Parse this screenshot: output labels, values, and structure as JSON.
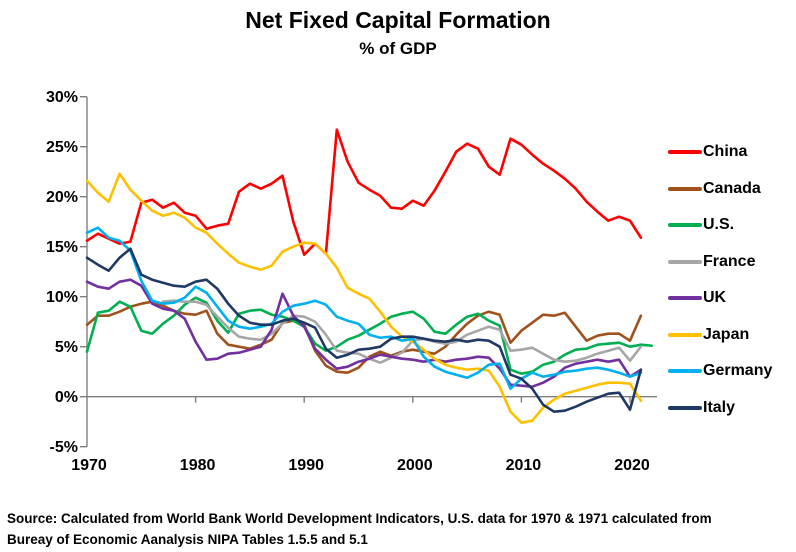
{
  "header": {
    "title": "Net Fixed Capital Formation",
    "subtitle": "% of GDP"
  },
  "source": {
    "line1": "Source:  Calculated from World Bank World Development Indicators, U.S. data for 1970 & 1971 calculated from",
    "line2": "Bureay of Economic Aanalysis NIPA Tables 1.5.5 and 5.1"
  },
  "chart_data": {
    "type": "line",
    "title": "Net Fixed Capital Formation",
    "subtitle": "% of GDP",
    "unit": "% of GDP",
    "grid": "zero-line-only",
    "legend_position": "right",
    "axis_color": "#7f7f7f",
    "x": {
      "start_year": 1970,
      "end_year": 2022,
      "tick_years": [
        1970,
        1980,
        1990,
        2000,
        2010,
        2020
      ],
      "tick_labels": [
        "1970",
        "1980",
        "1990",
        "2000",
        "2010",
        "2020"
      ]
    },
    "y": {
      "min": -5,
      "max": 30,
      "tick_values": [
        30,
        25,
        20,
        15,
        10,
        5,
        0,
        -5
      ],
      "tick_labels": [
        "30%",
        "25%",
        "20%",
        "15%",
        "10%",
        "5%",
        "0%",
        "-5%"
      ]
    },
    "series": [
      {
        "name": "China",
        "color": "#FF0000",
        "start_year": 1970,
        "values": [
          15.6,
          16.3,
          15.8,
          15.3,
          15.5,
          19.4,
          19.7,
          18.9,
          19.4,
          18.4,
          18.1,
          16.8,
          17.1,
          17.3,
          20.5,
          21.3,
          20.8,
          21.3,
          22.1,
          17.5,
          14.2,
          15.3,
          14.3,
          26.7,
          23.5,
          21.4,
          20.7,
          20.1,
          18.9,
          18.8,
          19.6,
          19.1,
          20.6,
          22.5,
          24.5,
          25.3,
          24.8,
          23.0,
          22.2,
          25.8,
          25.2,
          24.2,
          23.3,
          22.6,
          21.8,
          20.8,
          19.5,
          18.5,
          17.6,
          18.0,
          17.6,
          15.9
        ]
      },
      {
        "name": "Canada",
        "color": "#A0521D",
        "start_year": 1970,
        "values": [
          7.2,
          8.1,
          8.1,
          8.5,
          9.0,
          9.3,
          9.5,
          9.1,
          8.6,
          8.3,
          8.2,
          8.6,
          6.3,
          5.2,
          5.0,
          4.8,
          5.2,
          5.7,
          7.4,
          7.6,
          7.2,
          4.6,
          3.1,
          2.5,
          2.4,
          2.9,
          4.0,
          4.5,
          4.1,
          4.5,
          4.7,
          4.5,
          4.3,
          5.0,
          6.2,
          7.3,
          8.1,
          8.5,
          8.2,
          5.4,
          6.6,
          7.4,
          8.2,
          8.1,
          8.4,
          7.0,
          5.6,
          6.1,
          6.3,
          6.3,
          5.6,
          8.1
        ]
      },
      {
        "name": "U.S.",
        "color": "#00B050",
        "start_year": 1970,
        "values": [
          4.5,
          8.4,
          8.6,
          9.5,
          9.0,
          6.6,
          6.3,
          7.3,
          8.1,
          9.2,
          9.9,
          9.4,
          7.6,
          6.4,
          8.3,
          8.6,
          8.7,
          8.2,
          8.0,
          7.6,
          7.0,
          5.3,
          4.6,
          5.0,
          5.7,
          6.1,
          6.7,
          7.3,
          8.0,
          8.3,
          8.5,
          7.8,
          6.5,
          6.3,
          7.2,
          8.0,
          8.3,
          7.6,
          7.1,
          2.7,
          2.3,
          2.5,
          3.2,
          3.5,
          4.2,
          4.7,
          4.8,
          5.2,
          5.3,
          5.4,
          5.0,
          5.2,
          5.1
        ]
      },
      {
        "name": "France",
        "color": "#A6A6A6",
        "start_year": 1977,
        "values": [
          9.5,
          9.6,
          9.5,
          9.5,
          9.2,
          8.0,
          6.9,
          6.0,
          5.8,
          5.7,
          6.3,
          7.3,
          8.1,
          8.0,
          7.5,
          6.2,
          4.6,
          4.4,
          4.3,
          3.8,
          3.4,
          3.9,
          4.4,
          5.6,
          5.8,
          5.5,
          5.3,
          5.5,
          6.2,
          6.6,
          7.0,
          6.7,
          4.6,
          4.7,
          4.9,
          4.3,
          3.7,
          3.5,
          3.6,
          3.9,
          4.3,
          4.6,
          4.9,
          3.6,
          5.0
        ]
      },
      {
        "name": "UK",
        "color": "#7030A0",
        "start_year": 1970,
        "values": [
          11.5,
          11.0,
          10.8,
          11.5,
          11.7,
          11.1,
          9.3,
          8.8,
          8.6,
          7.8,
          5.5,
          3.7,
          3.8,
          4.3,
          4.4,
          4.7,
          5.0,
          6.7,
          10.3,
          8.1,
          7.0,
          4.8,
          3.7,
          2.8,
          3.0,
          3.5,
          3.8,
          4.2,
          4.0,
          3.8,
          3.7,
          3.5,
          3.7,
          3.5,
          3.7,
          3.8,
          4.0,
          3.9,
          2.8,
          1.2,
          1.1,
          1.0,
          1.4,
          2.0,
          2.9,
          3.3,
          3.5,
          3.7,
          3.5,
          3.7,
          2.0,
          2.7
        ]
      },
      {
        "name": "Japan",
        "color": "#FFC000",
        "start_year": 1970,
        "values": [
          21.6,
          20.4,
          19.5,
          22.3,
          20.7,
          19.6,
          18.6,
          18.1,
          18.4,
          17.9,
          16.9,
          16.4,
          15.3,
          14.3,
          13.4,
          13.0,
          12.7,
          13.1,
          14.5,
          15.0,
          15.4,
          15.3,
          14.3,
          12.9,
          10.9,
          10.3,
          9.8,
          8.5,
          7.0,
          6.0,
          5.5,
          4.7,
          3.8,
          3.2,
          2.9,
          2.7,
          2.8,
          2.6,
          1.0,
          -1.5,
          -2.6,
          -2.4,
          -1.1,
          -0.3,
          0.3,
          0.6,
          0.9,
          1.2,
          1.4,
          1.4,
          1.3,
          -0.4
        ]
      },
      {
        "name": "Germany",
        "color": "#00B0F0",
        "start_year": 1970,
        "values": [
          16.4,
          16.9,
          15.9,
          15.6,
          14.6,
          11.6,
          9.6,
          9.3,
          9.4,
          9.9,
          11.0,
          10.4,
          9.0,
          7.6,
          7.0,
          6.8,
          7.0,
          7.3,
          8.5,
          9.1,
          9.3,
          9.6,
          9.2,
          8.0,
          7.6,
          7.3,
          6.2,
          5.9,
          6.0,
          5.6,
          5.8,
          4.0,
          3.0,
          2.5,
          2.2,
          1.9,
          2.4,
          3.2,
          3.3,
          0.8,
          1.8,
          2.4,
          2.0,
          2.2,
          2.5,
          2.6,
          2.8,
          2.9,
          2.7,
          2.4,
          2.0,
          2.4
        ]
      },
      {
        "name": "Italy",
        "color": "#1F3864",
        "start_year": 1970,
        "values": [
          13.9,
          13.2,
          12.6,
          13.9,
          14.8,
          12.2,
          11.7,
          11.4,
          11.1,
          11.0,
          11.5,
          11.7,
          10.8,
          9.3,
          8.1,
          7.4,
          7.2,
          7.2,
          7.6,
          7.8,
          7.4,
          6.9,
          4.8,
          3.9,
          4.2,
          4.7,
          4.8,
          5.0,
          5.8,
          6.0,
          6.0,
          5.8,
          5.6,
          5.5,
          5.7,
          5.5,
          5.7,
          5.6,
          5.0,
          2.2,
          1.8,
          0.8,
          -0.8,
          -1.5,
          -1.4,
          -1.0,
          -0.5,
          -0.1,
          0.3,
          0.4,
          -1.3,
          2.7
        ]
      }
    ]
  }
}
